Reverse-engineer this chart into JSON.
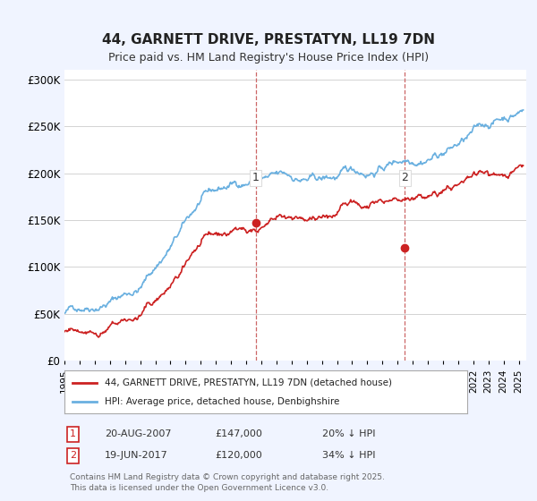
{
  "title": "44, GARNETT DRIVE, PRESTATYN, LL19 7DN",
  "subtitle": "Price paid vs. HM Land Registry's House Price Index (HPI)",
  "ylabel_ticks": [
    "£0",
    "£50K",
    "£100K",
    "£150K",
    "£200K",
    "£250K",
    "£300K"
  ],
  "ytick_values": [
    0,
    50000,
    100000,
    150000,
    200000,
    250000,
    300000
  ],
  "ylim": [
    0,
    310000
  ],
  "xlim_start": 1995.0,
  "xlim_end": 2025.5,
  "hpi_color": "#6ab0e0",
  "price_color": "#cc2222",
  "dashed_line_color": "#cc6666",
  "marker1_date": 2007.64,
  "marker1_value": 147000,
  "marker2_date": 2017.47,
  "marker2_value": 120000,
  "legend_label1": "44, GARNETT DRIVE, PRESTATYN, LL19 7DN (detached house)",
  "legend_label2": "HPI: Average price, detached house, Denbighshire",
  "annot1_num": "1",
  "annot1_date": "20-AUG-2007",
  "annot1_price": "£147,000",
  "annot1_hpi": "20% ↓ HPI",
  "annot2_num": "2",
  "annot2_date": "19-JUN-2017",
  "annot2_price": "£120,000",
  "annot2_hpi": "34% ↓ HPI",
  "footer": "Contains HM Land Registry data © Crown copyright and database right 2025.\nThis data is licensed under the Open Government Licence v3.0.",
  "bg_color": "#f0f4ff",
  "plot_bg_color": "#ffffff"
}
